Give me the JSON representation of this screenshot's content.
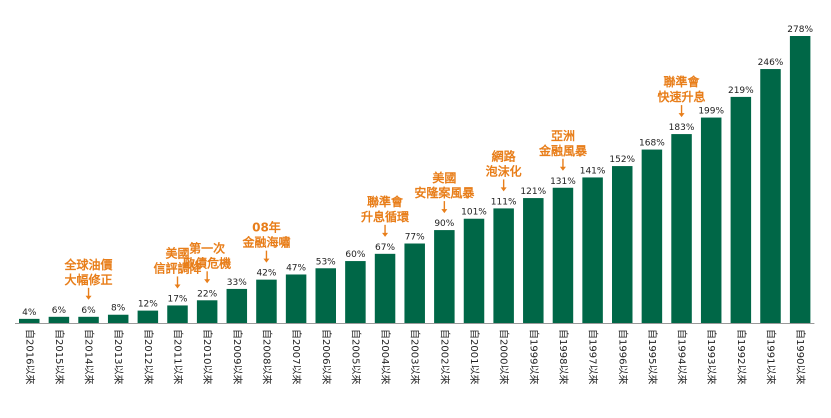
{
  "chart_data": {
    "type": "bar",
    "title": "",
    "xlabel": "",
    "ylabel": "",
    "ylim": [
      0,
      290
    ],
    "grid": false,
    "categories": [
      "自2016以來",
      "自2015以來",
      "自2014以來",
      "自2013以來",
      "自2012以來",
      "自2011以來",
      "自2010以來",
      "自2009以來",
      "自2008以來",
      "自2007以來",
      "自2006以來",
      "自2005以來",
      "自2004以來",
      "自2003以來",
      "自2002以來",
      "自2001以來",
      "自2000以來",
      "自1999以來",
      "自1998以來",
      "自1997以來",
      "自1996以來",
      "自1995以來",
      "自1994以來",
      "自1993以來",
      "自1992以來",
      "自1991以來",
      "自1990以來"
    ],
    "values": [
      4,
      6,
      6,
      8,
      12,
      17,
      22,
      33,
      42,
      47,
      53,
      60,
      67,
      77,
      90,
      101,
      111,
      121,
      131,
      141,
      152,
      168,
      183,
      199,
      219,
      246,
      278
    ],
    "value_labels": [
      "4%",
      "6%",
      "6%",
      "8%",
      "12%",
      "17%",
      "22%",
      "33%",
      "42%",
      "47%",
      "53%",
      "60%",
      "67%",
      "77%",
      "90%",
      "101%",
      "111%",
      "121%",
      "131%",
      "141%",
      "152%",
      "168%",
      "183%",
      "199%",
      "219%",
      "246%",
      "278%"
    ],
    "colors": {
      "bar": "#006747",
      "annotation": "#e87e1a",
      "text": "#222222",
      "axis": "#9a9a9a"
    },
    "annotations": [
      {
        "index": 2,
        "lines": [
          "全球油價",
          "大幅修正"
        ]
      },
      {
        "index": 5,
        "lines": [
          "美國",
          "信評調降"
        ]
      },
      {
        "index": 6,
        "lines": [
          "第一次",
          "歐債危機"
        ]
      },
      {
        "index": 8,
        "lines": [
          "08年",
          "金融海嘯"
        ]
      },
      {
        "index": 12,
        "lines": [
          "聯準會",
          "升息循環"
        ]
      },
      {
        "index": 14,
        "lines": [
          "美國",
          "安隆案風暴"
        ]
      },
      {
        "index": 16,
        "lines": [
          "網路",
          "泡沫化"
        ]
      },
      {
        "index": 18,
        "lines": [
          "亞洲",
          "金融風暴"
        ]
      },
      {
        "index": 22,
        "lines": [
          "聯準會",
          "快速升息"
        ]
      }
    ]
  }
}
